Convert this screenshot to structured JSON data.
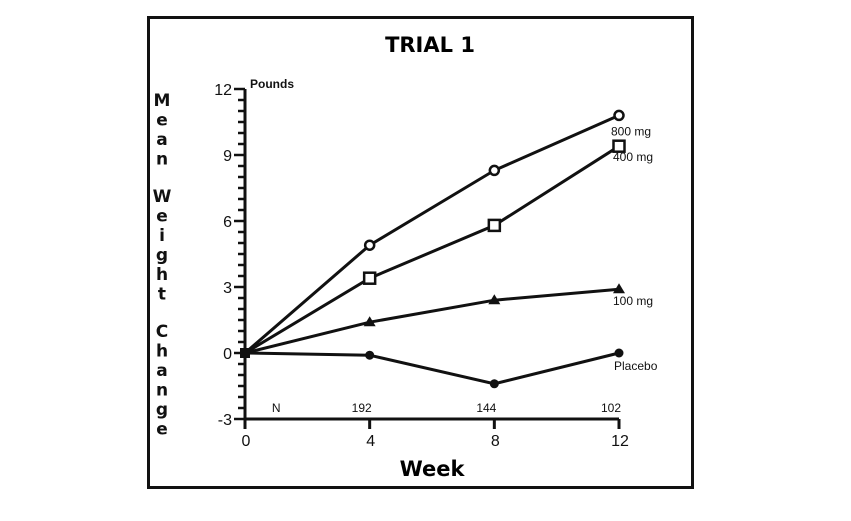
{
  "chart_data": {
    "type": "line",
    "title": "TRIAL 1",
    "xlabel": "Week",
    "ylabel": "Mean Weight Change",
    "yunit": "Pounds",
    "x": [
      0,
      4,
      8,
      12
    ],
    "xticks": [
      0,
      4,
      8,
      12
    ],
    "yticks": [
      -3,
      0,
      3,
      6,
      9,
      12
    ],
    "xlim": [
      0,
      12
    ],
    "ylim": [
      -3,
      12
    ],
    "grid": false,
    "n_row": {
      "label": "N",
      "values": [
        "192",
        "144",
        "102"
      ]
    },
    "series": [
      {
        "name": "800 mg",
        "marker": "open-circle",
        "values": [
          0,
          4.9,
          8.3,
          10.8
        ]
      },
      {
        "name": "400 mg",
        "marker": "open-square",
        "values": [
          0,
          3.4,
          5.8,
          9.4
        ]
      },
      {
        "name": "100 mg",
        "marker": "filled-triangle",
        "values": [
          0,
          1.4,
          2.4,
          2.9
        ]
      },
      {
        "name": "Placebo",
        "marker": "filled-circle",
        "values": [
          0,
          -0.1,
          -1.4,
          0
        ]
      }
    ],
    "colors": {
      "line": "#111111",
      "background": "#ffffff"
    }
  }
}
